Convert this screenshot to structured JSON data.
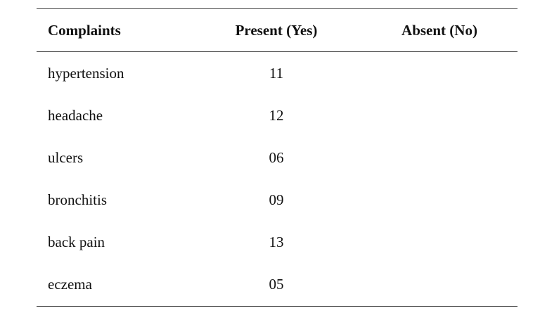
{
  "table": {
    "header": [
      "Complaints",
      "Present (Yes)",
      "Absent (No)"
    ],
    "rows": [
      [
        "hypertension",
        "11"
      ],
      [
        "headache",
        "12"
      ],
      [
        "ulcers",
        "06"
      ],
      [
        "bronchitis",
        "09"
      ],
      [
        "back pain",
        "13"
      ],
      [
        "eczema",
        "05"
      ]
    ]
  }
}
